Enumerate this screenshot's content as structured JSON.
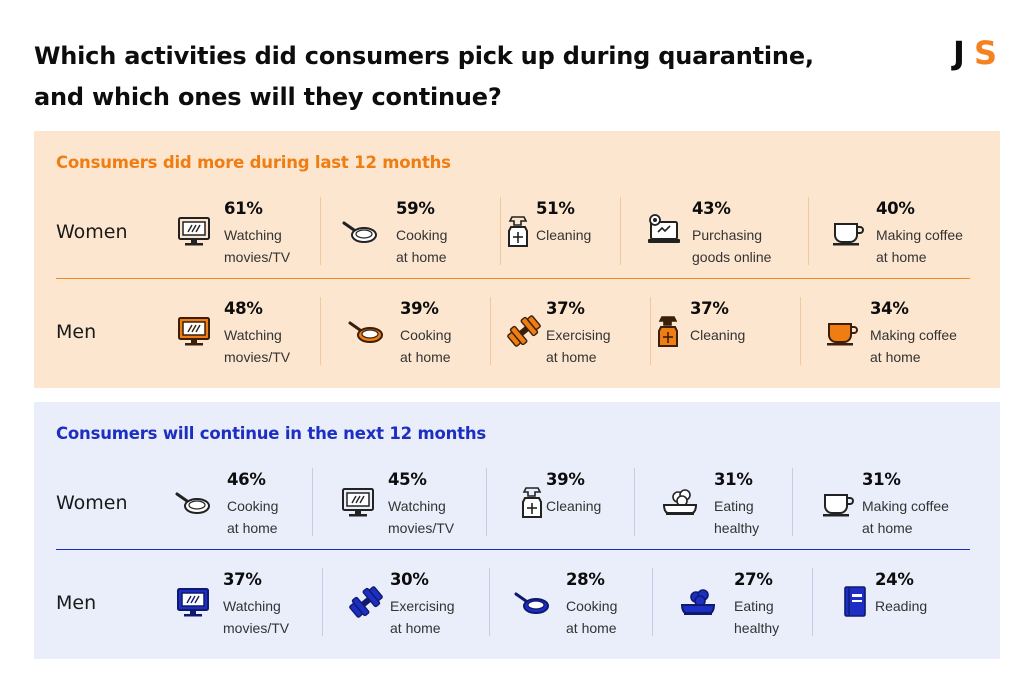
{
  "title_line1": "Which activities did consumers pick up during quarantine,",
  "title_line2": "and which ones will they continue?",
  "logo_text": "JS",
  "colors": {
    "orange": "#f07d12",
    "blue": "#1d2fc2",
    "orange_bg": "#fde6cf",
    "blue_bg": "#e9eefa"
  },
  "chart_data": [
    {
      "type": "table",
      "title": "Consumers did more during last 12 months",
      "rows": [
        {
          "group": "Women",
          "items": [
            {
              "value": 61,
              "pct": "61%",
              "label1": "Watching",
              "label2": "movies/TV",
              "icon": "tv-icon"
            },
            {
              "value": 59,
              "pct": "59%",
              "label1": "Cooking",
              "label2": "at home",
              "icon": "frying-pan-icon"
            },
            {
              "value": 51,
              "pct": "51%",
              "label1": "Cleaning",
              "label2": "",
              "icon": "spray-bottle-icon"
            },
            {
              "value": 43,
              "pct": "43%",
              "label1": "Purchasing",
              "label2": "goods online",
              "icon": "laptop-shopping-icon"
            },
            {
              "value": 40,
              "pct": "40%",
              "label1": "Making coffee",
              "label2": "at home",
              "icon": "coffee-cup-icon"
            }
          ]
        },
        {
          "group": "Men",
          "items": [
            {
              "value": 48,
              "pct": "48%",
              "label1": "Watching",
              "label2": "movies/TV",
              "icon": "tv-icon"
            },
            {
              "value": 39,
              "pct": "39%",
              "label1": "Cooking",
              "label2": "at home",
              "icon": "frying-pan-icon"
            },
            {
              "value": 37,
              "pct": "37%",
              "label1": "Exercising",
              "label2": "at home",
              "icon": "dumbbell-icon"
            },
            {
              "value": 37,
              "pct": "37%",
              "label1": "Cleaning",
              "label2": "",
              "icon": "spray-bottle-icon"
            },
            {
              "value": 34,
              "pct": "34%",
              "label1": "Making coffee",
              "label2": "at home",
              "icon": "coffee-cup-icon"
            }
          ]
        }
      ]
    },
    {
      "type": "table",
      "title": "Consumers will continue in the next 12 months",
      "rows": [
        {
          "group": "Women",
          "items": [
            {
              "value": 46,
              "pct": "46%",
              "label1": "Cooking",
              "label2": "at home",
              "icon": "frying-pan-icon"
            },
            {
              "value": 45,
              "pct": "45%",
              "label1": "Watching",
              "label2": "movies/TV",
              "icon": "tv-icon"
            },
            {
              "value": 39,
              "pct": "39%",
              "label1": "Cleaning",
              "label2": "",
              "icon": "spray-bottle-icon"
            },
            {
              "value": 31,
              "pct": "31%",
              "label1": "Eating",
              "label2": "healthy",
              "icon": "healthy-food-icon"
            },
            {
              "value": 31,
              "pct": "31%",
              "label1": "Making coffee",
              "label2": "at home",
              "icon": "coffee-cup-icon"
            }
          ]
        },
        {
          "group": "Men",
          "items": [
            {
              "value": 37,
              "pct": "37%",
              "label1": "Watching",
              "label2": "movies/TV",
              "icon": "tv-icon"
            },
            {
              "value": 30,
              "pct": "30%",
              "label1": "Exercising",
              "label2": "at home",
              "icon": "dumbbell-icon"
            },
            {
              "value": 28,
              "pct": "28%",
              "label1": "Cooking",
              "label2": "at home",
              "icon": "frying-pan-icon"
            },
            {
              "value": 27,
              "pct": "27%",
              "label1": "Eating",
              "label2": "healthy",
              "icon": "healthy-food-icon"
            },
            {
              "value": 24,
              "pct": "24%",
              "label1": "Reading",
              "label2": "",
              "icon": "book-icon"
            }
          ]
        }
      ]
    }
  ]
}
